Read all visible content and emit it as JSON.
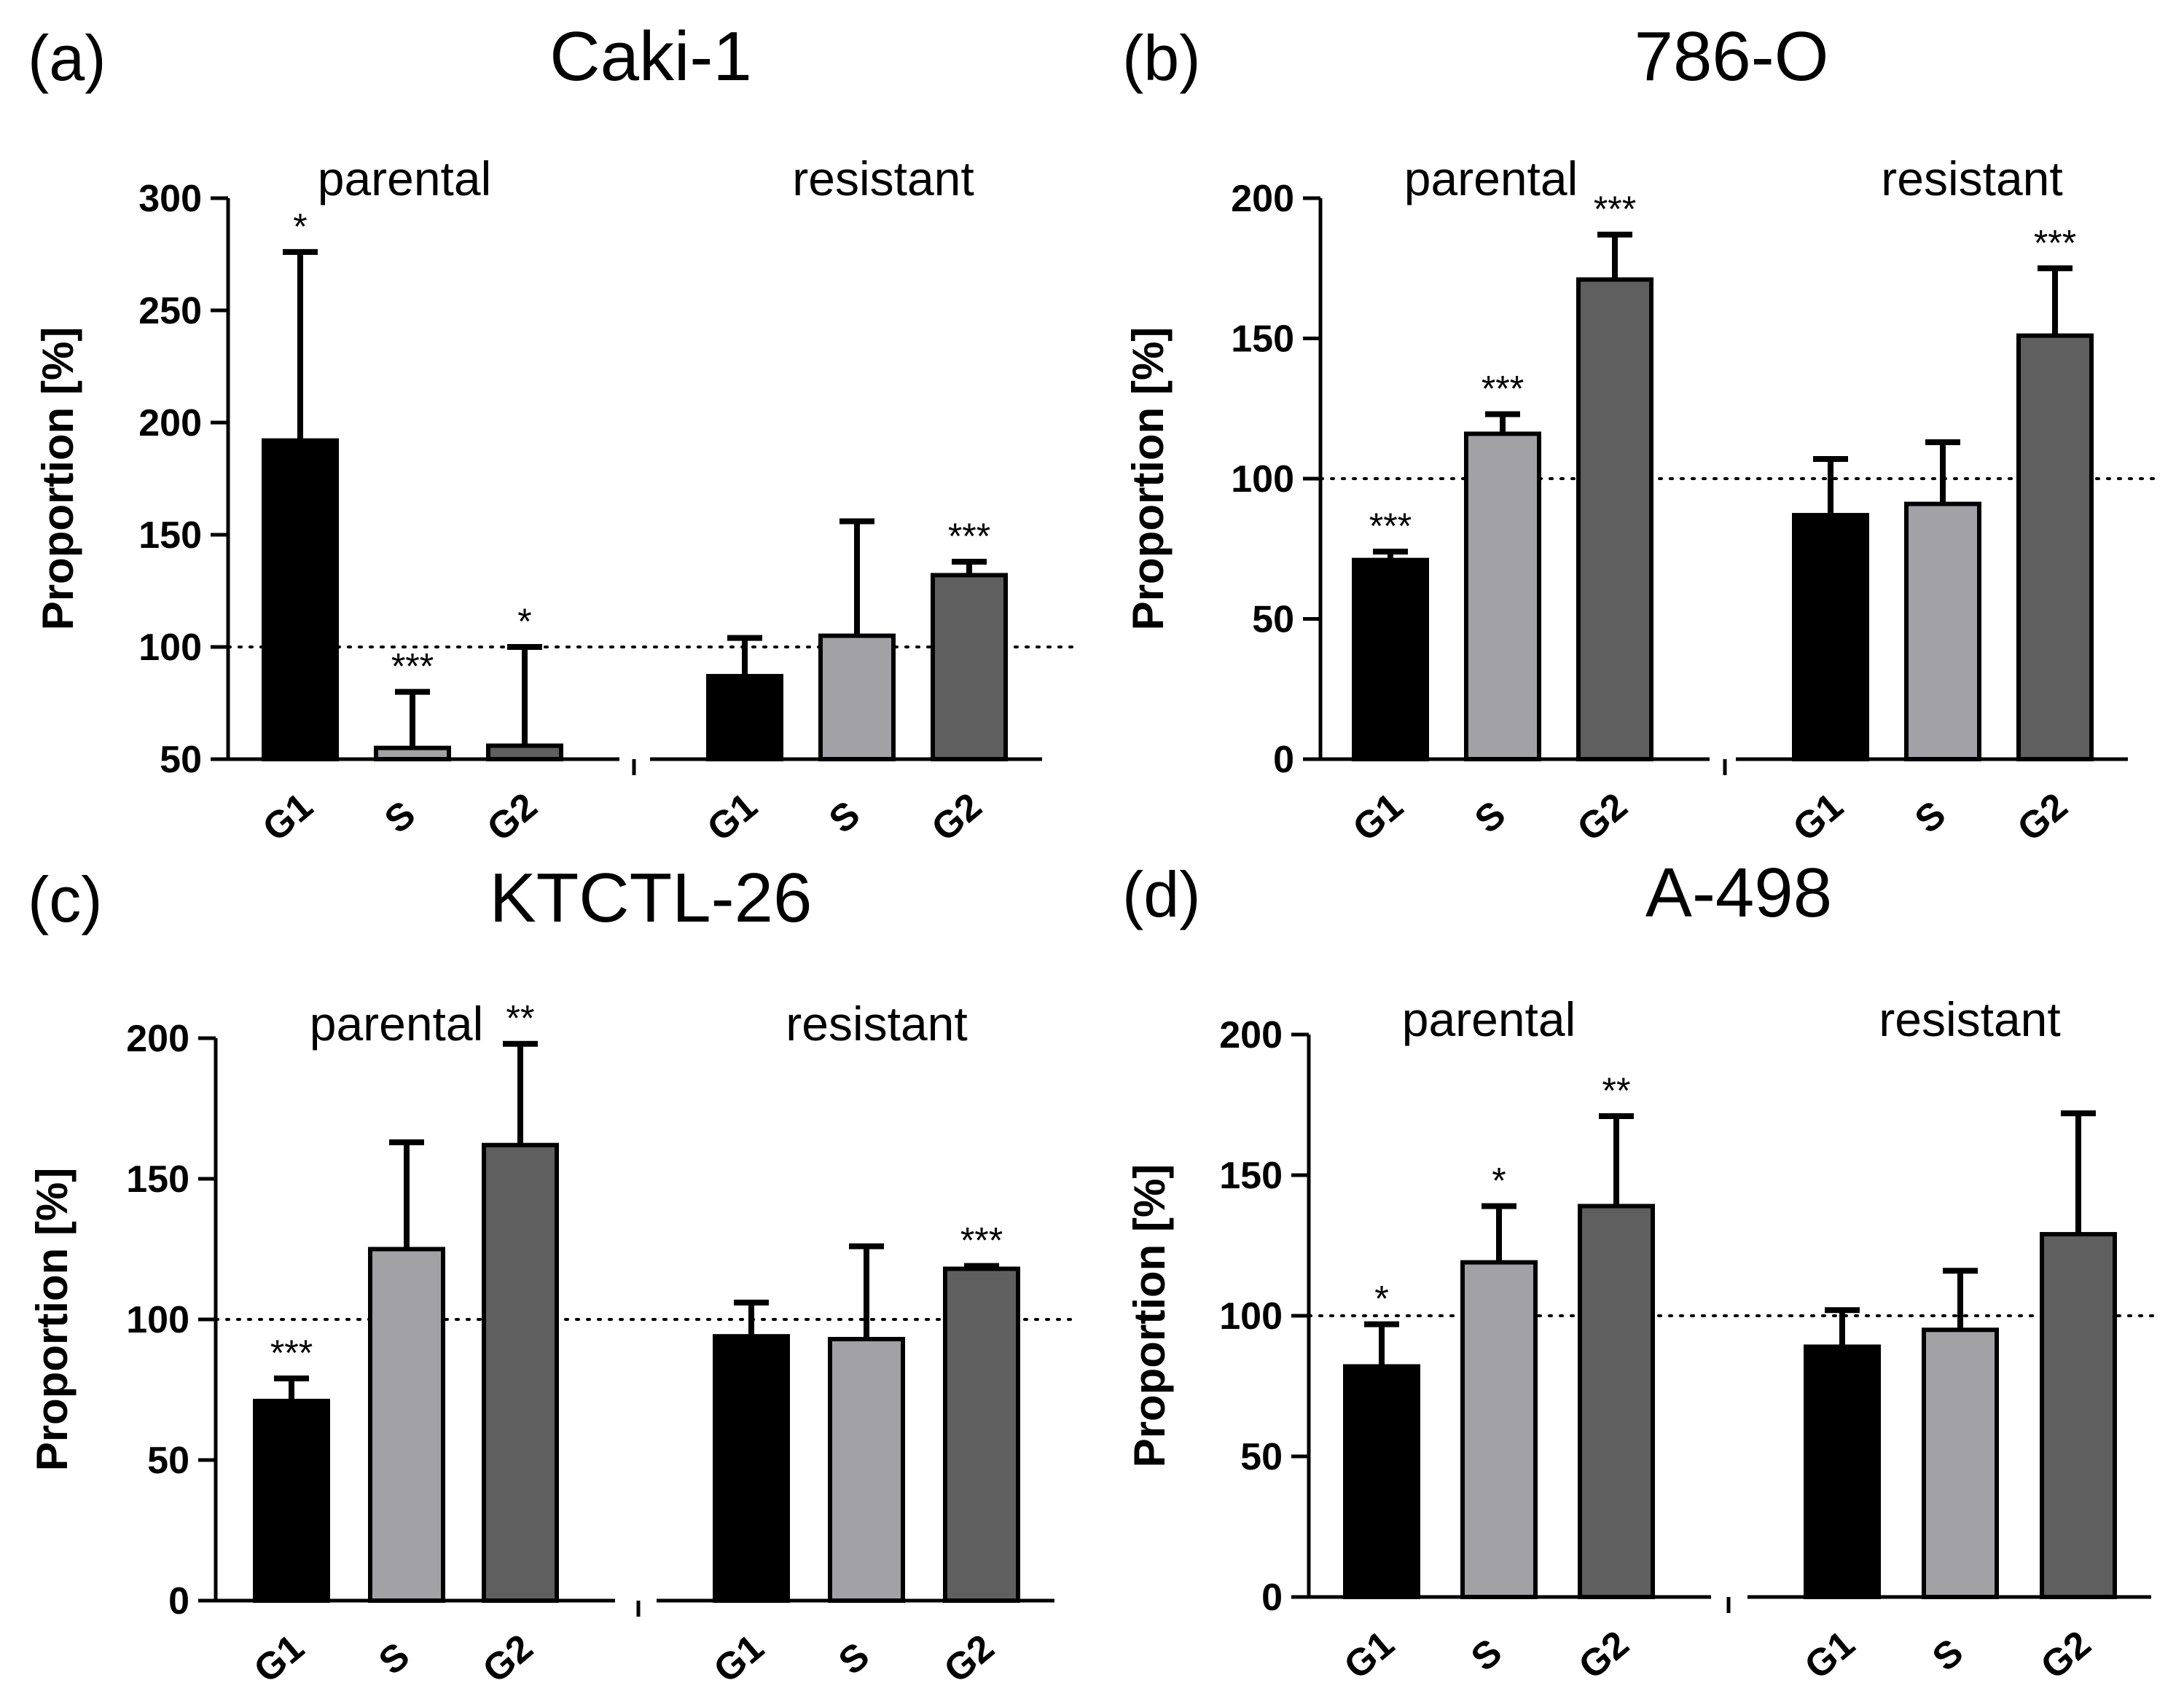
{
  "chart_data": [
    {
      "type": "bar",
      "panel_letter": "(a)",
      "title": "Caki-1",
      "ylabel": "Proportion [%]",
      "ylim": [
        50,
        300
      ],
      "yticks": [
        50,
        100,
        150,
        200,
        250,
        300
      ],
      "reference_line": 100,
      "groups": [
        {
          "label": "parental",
          "bars": [
            {
              "category": "G1",
              "value": 192,
              "error": 84,
              "sig": "*"
            },
            {
              "category": "S",
              "value": 55,
              "error": 25,
              "sig": "***"
            },
            {
              "category": "G2",
              "value": 56,
              "error": 44,
              "sig": "*"
            }
          ]
        },
        {
          "label": "resistant",
          "bars": [
            {
              "category": "G1",
              "value": 87,
              "error": 17,
              "sig": ""
            },
            {
              "category": "S",
              "value": 105,
              "error": 51,
              "sig": ""
            },
            {
              "category": "G2",
              "value": 132,
              "error": 6,
              "sig": "***"
            }
          ]
        }
      ]
    },
    {
      "type": "bar",
      "panel_letter": "(b)",
      "title": "786-O",
      "ylabel": "Proportion [%]",
      "ylim": [
        0,
        200
      ],
      "yticks": [
        0,
        50,
        100,
        150,
        200
      ],
      "reference_line": 100,
      "groups": [
        {
          "label": "parental",
          "bars": [
            {
              "category": "G1",
              "value": 71,
              "error": 3,
              "sig": "***"
            },
            {
              "category": "S",
              "value": 116,
              "error": 7,
              "sig": "***"
            },
            {
              "category": "G2",
              "value": 171,
              "error": 16,
              "sig": "***"
            }
          ]
        },
        {
          "label": "resistant",
          "bars": [
            {
              "category": "G1",
              "value": 87,
              "error": 20,
              "sig": ""
            },
            {
              "category": "S",
              "value": 91,
              "error": 22,
              "sig": ""
            },
            {
              "category": "G2",
              "value": 151,
              "error": 24,
              "sig": "***"
            }
          ]
        }
      ]
    },
    {
      "type": "bar",
      "panel_letter": "(c)",
      "title": "KTCTL-26",
      "ylabel": "Proportion [%]",
      "ylim": [
        0,
        200
      ],
      "yticks": [
        0,
        50,
        100,
        150,
        200
      ],
      "reference_line": 100,
      "groups": [
        {
          "label": "parental",
          "bars": [
            {
              "category": "G1",
              "value": 71,
              "error": 8,
              "sig": "***"
            },
            {
              "category": "S",
              "value": 125,
              "error": 38,
              "sig": ""
            },
            {
              "category": "G2",
              "value": 162,
              "error": 36,
              "sig": "**"
            }
          ]
        },
        {
          "label": "resistant",
          "bars": [
            {
              "category": "G1",
              "value": 94,
              "error": 12,
              "sig": ""
            },
            {
              "category": "S",
              "value": 93,
              "error": 33,
              "sig": ""
            },
            {
              "category": "G2",
              "value": 118,
              "error": 1,
              "sig": "***"
            }
          ]
        }
      ]
    },
    {
      "type": "bar",
      "panel_letter": "(d)",
      "title": "A-498",
      "ylabel": "Proportion [%]",
      "ylim": [
        0,
        200
      ],
      "yticks": [
        0,
        50,
        100,
        150,
        200
      ],
      "reference_line": 100,
      "groups": [
        {
          "label": "parental",
          "bars": [
            {
              "category": "G1",
              "value": 82,
              "error": 15,
              "sig": "*"
            },
            {
              "category": "S",
              "value": 119,
              "error": 20,
              "sig": "*"
            },
            {
              "category": "G2",
              "value": 139,
              "error": 32,
              "sig": "**"
            }
          ]
        },
        {
          "label": "resistant",
          "bars": [
            {
              "category": "G1",
              "value": 89,
              "error": 13,
              "sig": ""
            },
            {
              "category": "S",
              "value": 95,
              "error": 21,
              "sig": ""
            },
            {
              "category": "G2",
              "value": 129,
              "error": 43,
              "sig": ""
            }
          ]
        }
      ]
    }
  ],
  "colors": {
    "G1": "#000000",
    "S": "#a2a1a6",
    "G2": "#5f5f5f",
    "outline": "#000000"
  }
}
